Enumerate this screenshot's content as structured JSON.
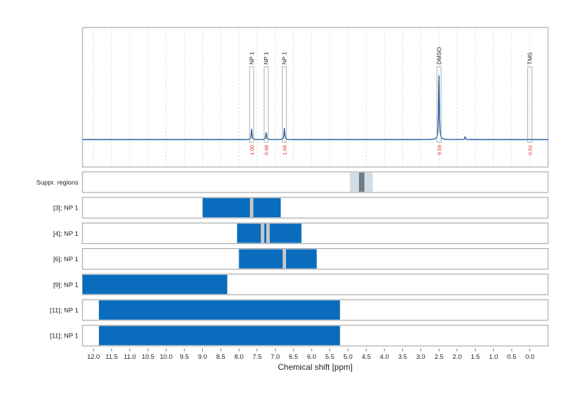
{
  "chart_data": {
    "type": "nmr-spectrum",
    "xlabel": "Chemical shift [ppm]",
    "xlim": [
      12.3,
      -0.5
    ],
    "xticks": [
      12.0,
      11.5,
      11.0,
      10.5,
      10.0,
      9.5,
      9.0,
      8.5,
      8.0,
      7.5,
      7.0,
      6.5,
      6.0,
      5.5,
      5.0,
      4.5,
      4.0,
      3.5,
      3.0,
      2.5,
      2.0,
      1.5,
      1.0,
      0.5,
      0.0
    ],
    "xtick_labels": [
      "12.0",
      "11.5",
      "11.0",
      "10.5",
      "10.0",
      "9.5",
      "9.0",
      "8.5",
      "8.0",
      "7.5",
      "7.0",
      "6.5",
      "6.0",
      "5.5",
      "5.0",
      "4.5",
      "4.0",
      "3.5",
      "3.0",
      "2.5",
      "2.0",
      "1.5",
      "1.0",
      "0.5",
      "0.0"
    ],
    "colors": {
      "spectrum": "#1f5fa0",
      "region": "#0a6cbd",
      "peak_marker": "#c8c8c8",
      "suppression_light": "#d3dde6",
      "suppression_dark": "#6e7d88",
      "integral_label": "#d62728",
      "grid": "#c8c8c8"
    },
    "peak_annotations": [
      {
        "label": "NP 1",
        "ppm": 7.65,
        "integral": "1.00"
      },
      {
        "label": "NP 1",
        "ppm": 7.25,
        "integral": "0.98"
      },
      {
        "label": "NP 1",
        "ppm": 6.75,
        "integral": "1.06"
      },
      {
        "label": "DMSO",
        "ppm": 2.5,
        "integral": "9.59"
      },
      {
        "label": "TMS",
        "ppm": 0.0,
        "integral": "0.01"
      }
    ],
    "spectrum_peaks": [
      {
        "ppm": 7.65,
        "height": 0.12
      },
      {
        "ppm": 7.25,
        "height": 0.08
      },
      {
        "ppm": 6.75,
        "height": 0.13
      },
      {
        "ppm": 2.5,
        "height": 0.77
      },
      {
        "ppm": 1.78,
        "height": 0.03
      }
    ],
    "tracks": [
      {
        "label": "Suppr. regions",
        "kind": "suppression",
        "regions": [
          [
            4.95,
            4.32
          ]
        ],
        "core": [
          4.7,
          4.55
        ]
      },
      {
        "label": "[3]; NP 1",
        "kind": "regions",
        "regions": [
          [
            9.0,
            6.85
          ]
        ],
        "markers": [
          7.65
        ]
      },
      {
        "label": "[4]; NP 1",
        "kind": "regions",
        "regions": [
          [
            8.05,
            6.28
          ]
        ],
        "markers": [
          7.35,
          7.2
        ]
      },
      {
        "label": "[6]; NP 1",
        "kind": "regions",
        "regions": [
          [
            8.0,
            5.86
          ]
        ],
        "markers": [
          6.75
        ]
      },
      {
        "label": "[9]; NP 1",
        "kind": "regions",
        "regions": [
          [
            12.3,
            8.32
          ]
        ],
        "markers": []
      },
      {
        "label": "[11]; NP 1",
        "kind": "regions",
        "regions": [
          [
            11.85,
            5.22
          ]
        ],
        "markers": []
      },
      {
        "label": "[11]; NP 1",
        "kind": "regions",
        "regions": [
          [
            11.85,
            5.22
          ]
        ],
        "markers": []
      }
    ]
  }
}
